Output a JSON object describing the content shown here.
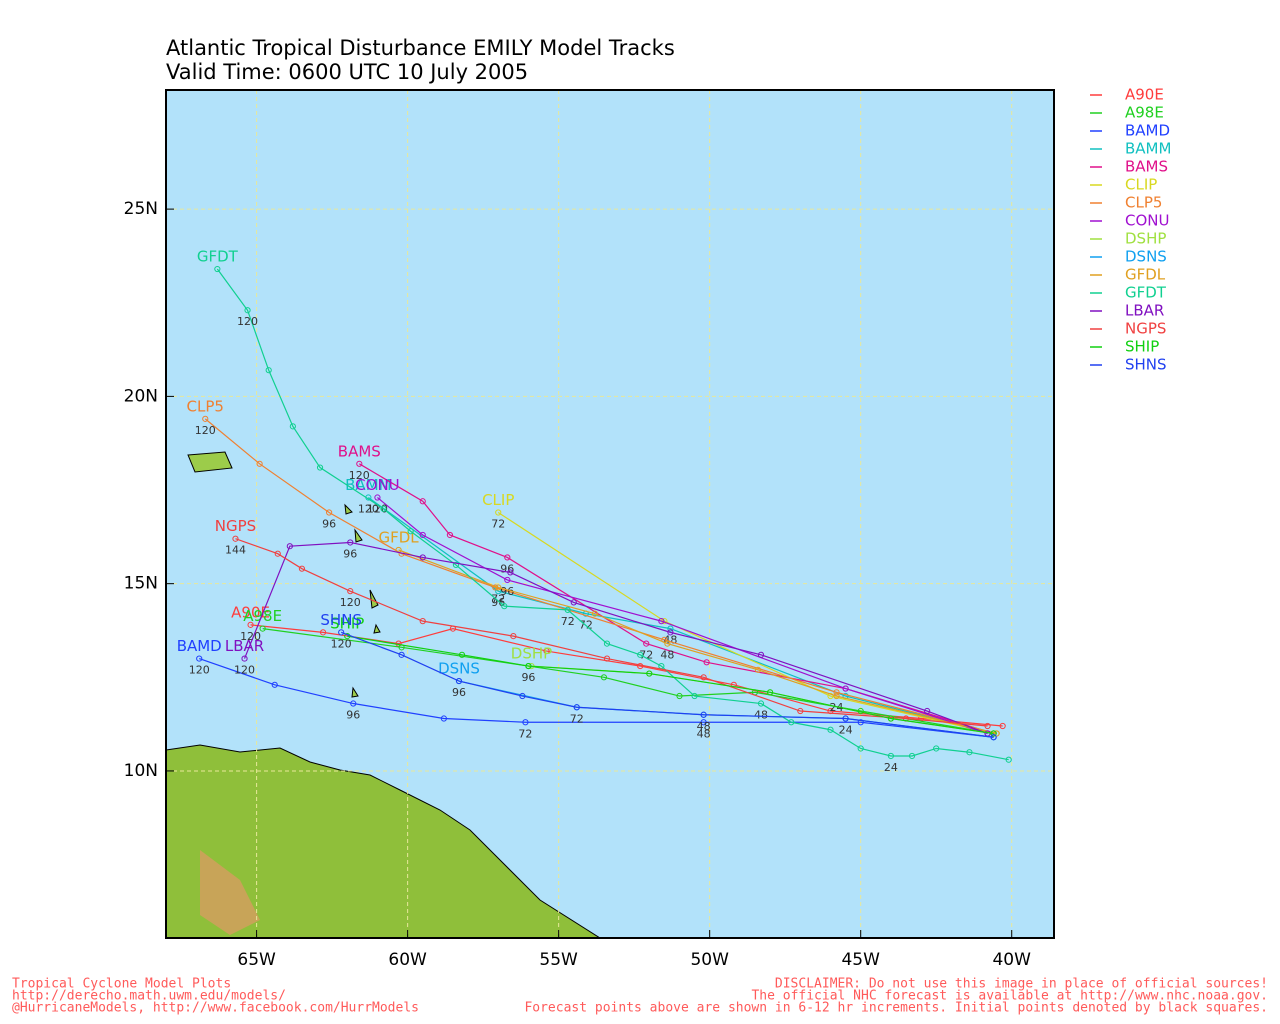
{
  "chart_data": {
    "type": "track",
    "title": "Atlantic Tropical Disturbance EMILY Model Tracks",
    "subtitle": "Valid Time: 0600 UTC 10 July 2005",
    "xlim": [
      -68,
      -38.6
    ],
    "ylim": [
      5.54,
      28.18
    ],
    "xticks": [
      {
        "value": -65,
        "label": "65W"
      },
      {
        "value": -60,
        "label": "60W"
      },
      {
        "value": -55,
        "label": "55W"
      },
      {
        "value": -50,
        "label": "50W"
      },
      {
        "value": -45,
        "label": "45W"
      },
      {
        "value": -40,
        "label": "40W"
      }
    ],
    "yticks": [
      {
        "value": 10,
        "label": "10N"
      },
      {
        "value": 15,
        "label": "15N"
      },
      {
        "value": 20,
        "label": "20N"
      },
      {
        "value": 25,
        "label": "25N"
      }
    ],
    "grid": true,
    "legend": "right",
    "series": [
      {
        "name": "A90E",
        "color": "#ff3c3c",
        "x": [
          -40.3,
          -43.0,
          -46.0,
          -49.2,
          -52.3,
          -55.4,
          -58.5,
          -60.3,
          -62.8,
          -65.2
        ],
        "values": [
          11.2,
          11.4,
          11.6,
          12.3,
          12.8,
          13.2,
          13.8,
          13.4,
          13.7,
          13.9
        ],
        "point_labels": [
          null,
          null,
          null,
          null,
          null,
          null,
          null,
          null,
          null,
          "120"
        ]
      },
      {
        "name": "A98E",
        "color": "#20d020",
        "x": [
          -40.6,
          -45.0,
          -48.5,
          -51.0,
          -53.5,
          -56.0,
          -60.2,
          -64.8
        ],
        "values": [
          11.0,
          11.6,
          12.1,
          12.0,
          12.5,
          12.8,
          13.3,
          13.8
        ],
        "point_labels": [
          null,
          null,
          null,
          null,
          null,
          null,
          null,
          null
        ]
      },
      {
        "name": "BAMD",
        "color": "#2040ff",
        "x": [
          -40.6,
          -45.0,
          -50.2,
          -56.1,
          -58.8,
          -61.8,
          -64.4,
          -66.9
        ],
        "values": [
          10.9,
          11.3,
          11.3,
          11.3,
          11.4,
          11.8,
          12.3,
          13.0
        ],
        "point_labels": [
          null,
          null,
          "48",
          "72",
          null,
          "96",
          null,
          "120"
        ]
      },
      {
        "name": "BAMM",
        "color": "#10c0c0",
        "x": [
          -40.6,
          -45.5,
          -51.3,
          -54.1,
          -57.0,
          -61.3
        ],
        "values": [
          11.0,
          12.0,
          13.8,
          14.2,
          14.8,
          17.3
        ],
        "point_labels": [
          null,
          null,
          "48",
          "72",
          "96",
          "120"
        ]
      },
      {
        "name": "BAMS",
        "color": "#e0108a",
        "x": [
          -40.6,
          -45.5,
          -50.1,
          -52.1,
          -56.7,
          -58.6,
          -59.5,
          -61.6
        ],
        "values": [
          11.0,
          12.2,
          12.9,
          13.4,
          15.7,
          16.3,
          17.2,
          18.2
        ],
        "point_labels": [
          null,
          null,
          null,
          "72",
          "96",
          null,
          null,
          "120"
        ]
      },
      {
        "name": "CLIP",
        "color": "#d8d820",
        "x": [
          -40.6,
          -46.0,
          -51.5,
          -57.0
        ],
        "values": [
          11.0,
          12.0,
          14.0,
          16.9
        ],
        "point_labels": [
          null,
          null,
          null,
          "72"
        ]
      },
      {
        "name": "CLP5",
        "color": "#f08030",
        "x": [
          -40.5,
          -45.8,
          -51.5,
          -57.1,
          -60.2,
          -62.6,
          -64.9,
          -66.7
        ],
        "values": [
          11.0,
          12.1,
          13.5,
          14.9,
          15.8,
          16.9,
          18.2,
          19.4
        ],
        "point_labels": [
          null,
          null,
          null,
          null,
          null,
          "96",
          null,
          "120"
        ]
      },
      {
        "name": "CONU",
        "color": "#a010d0",
        "x": [
          -40.8,
          -45.5,
          -51.6,
          -56.7,
          -59.5,
          -61.0
        ],
        "values": [
          11.0,
          12.2,
          14.0,
          15.1,
          16.3,
          17.3
        ],
        "point_labels": [
          null,
          null,
          null,
          "96",
          null,
          "120"
        ]
      },
      {
        "name": "DSHP",
        "color": "#a0e040",
        "x": [
          -40.6,
          -44.0,
          -48.0,
          -52.0,
          -55.9
        ],
        "values": [
          11.0,
          11.4,
          12.1,
          12.6,
          12.8
        ],
        "point_labels": [
          null,
          null,
          null,
          null,
          null
        ]
      },
      {
        "name": "DSNS",
        "color": "#10a0f0",
        "x": [
          -40.6,
          -45.5,
          -50.2,
          -54.4,
          -58.3
        ],
        "values": [
          10.9,
          11.4,
          11.5,
          11.7,
          12.4
        ],
        "point_labels": [
          null,
          null,
          null,
          null,
          null
        ]
      },
      {
        "name": "GFDL",
        "color": "#e0a020",
        "x": [
          -40.5,
          -45.8,
          -48.4,
          -51.4,
          -53.8,
          -57.0,
          -60.3
        ],
        "values": [
          11.0,
          12.0,
          12.7,
          13.4,
          14.2,
          14.9,
          15.9
        ],
        "point_labels": [
          null,
          "24",
          null,
          "48",
          null,
          "72",
          null
        ]
      },
      {
        "name": "GFDT",
        "color": "#10d090",
        "x": [
          -40.1,
          -41.4,
          -42.5,
          -43.3,
          -44.0,
          -45.0,
          -46.0,
          -47.3,
          -48.3,
          -50.5,
          -51.6,
          -52.3,
          -53.4,
          -54.7,
          -56.8,
          -58.4,
          -59.9,
          -60.8,
          -62.9,
          -63.8,
          -64.6,
          -65.3,
          -66.3
        ],
        "values": [
          10.3,
          10.5,
          10.6,
          10.4,
          10.4,
          10.6,
          11.1,
          11.3,
          11.8,
          12.0,
          12.8,
          13.1,
          13.4,
          14.3,
          14.4,
          15.5,
          16.4,
          17.0,
          18.1,
          19.2,
          20.7,
          22.3,
          23.4
        ],
        "point_labels": [
          null,
          null,
          null,
          null,
          "24",
          null,
          null,
          null,
          "48",
          null,
          null,
          null,
          null,
          "72",
          null,
          null,
          null,
          null,
          null,
          null,
          null,
          "120",
          null
        ]
      },
      {
        "name": "LBAR",
        "color": "#8010c0",
        "x": [
          -40.8,
          -42.8,
          -48.3,
          -51.3,
          -54.5,
          -56.6,
          -59.5,
          -61.9,
          -63.9,
          -65.4
        ],
        "values": [
          11.0,
          11.6,
          13.1,
          13.7,
          14.5,
          15.3,
          15.7,
          16.1,
          16.0,
          13.0
        ],
        "point_labels": [
          null,
          null,
          null,
          null,
          null,
          null,
          null,
          "96",
          null,
          "120"
        ]
      },
      {
        "name": "NGPS",
        "color": "#f04040",
        "x": [
          -40.8,
          -43.5,
          -47.0,
          -50.2,
          -53.4,
          -56.5,
          -59.5,
          -61.9,
          -63.5,
          -64.3,
          -65.7
        ],
        "values": [
          11.2,
          11.4,
          11.6,
          12.5,
          13.0,
          13.6,
          14.0,
          14.8,
          15.4,
          15.8,
          16.2
        ],
        "point_labels": [
          null,
          null,
          null,
          null,
          null,
          null,
          null,
          "120",
          null,
          null,
          "144"
        ]
      },
      {
        "name": "SHIP",
        "color": "#10d010",
        "x": [
          -40.6,
          -44.0,
          -48.0,
          -52.0,
          -56.0,
          -58.2,
          -62.0
        ],
        "values": [
          11.0,
          11.4,
          12.1,
          12.6,
          12.8,
          13.1,
          13.6
        ],
        "point_labels": [
          null,
          null,
          null,
          null,
          "96",
          null,
          null
        ]
      },
      {
        "name": "SHNS",
        "color": "#2040f0",
        "x": [
          -40.6,
          -45.5,
          -50.2,
          -54.4,
          -56.2,
          -58.3,
          -60.2,
          -62.2
        ],
        "values": [
          10.9,
          11.4,
          11.5,
          11.7,
          12.0,
          12.4,
          13.1,
          13.7
        ],
        "point_labels": [
          null,
          "24",
          "48",
          "72",
          null,
          "96",
          null,
          "120"
        ]
      }
    ]
  },
  "footer": {
    "left": [
      "Tropical Cyclone Model Plots",
      "http://derecho.math.uwm.edu/models/",
      "@HurricaneModels, http://www.facebook.com/HurrModels"
    ],
    "right": [
      "DISCLAIMER: Do not use this image in place of official sources!",
      "The official NHC forecast is available at http://www.nhc.noaa.gov.",
      "Forecast points above are shown in 6-12 hr increments. Initial points denoted by black squares."
    ]
  }
}
